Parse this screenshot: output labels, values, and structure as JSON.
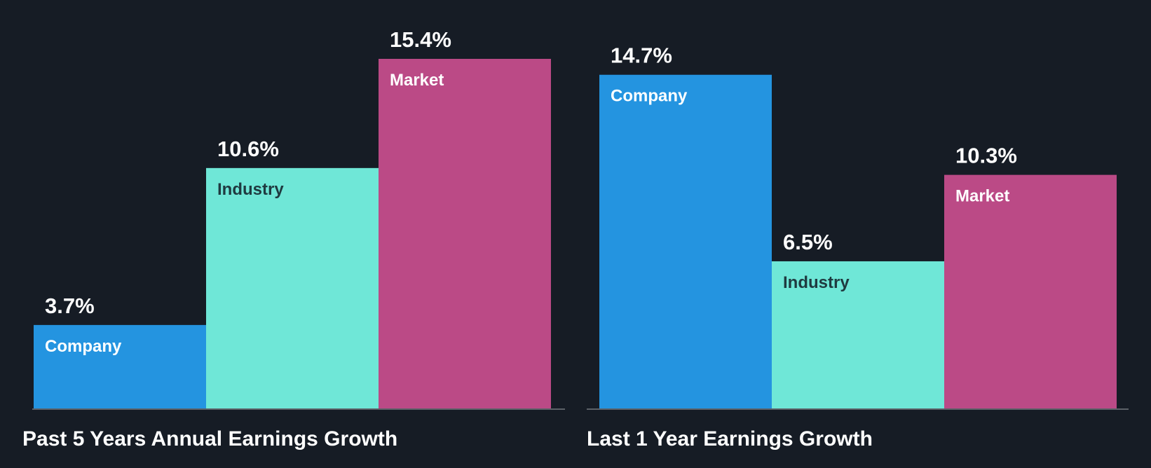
{
  "background_color": "#161c25",
  "axis_color": "#5c6168",
  "chart_data": [
    {
      "type": "bar",
      "title": "Past 5 Years Annual Earnings Growth",
      "categories": [
        "Company",
        "Industry",
        "Market"
      ],
      "values": [
        3.7,
        10.6,
        15.4
      ],
      "value_labels": [
        "3.7%",
        "10.6%",
        "15.4%"
      ],
      "colors": [
        "#2494e0",
        "#6fe7d7",
        "#bb4a86"
      ],
      "name_colors": [
        "#ffffff",
        "#1f3a40",
        "#ffffff"
      ],
      "xlabel": "",
      "ylabel": "",
      "ylim": [
        0,
        15.4
      ]
    },
    {
      "type": "bar",
      "title": "Last 1 Year Earnings Growth",
      "categories": [
        "Company",
        "Industry",
        "Market"
      ],
      "values": [
        14.7,
        6.5,
        10.3
      ],
      "value_labels": [
        "14.7%",
        "6.5%",
        "10.3%"
      ],
      "colors": [
        "#2494e0",
        "#6fe7d7",
        "#bb4a86"
      ],
      "name_colors": [
        "#ffffff",
        "#1f3a40",
        "#ffffff"
      ],
      "xlabel": "",
      "ylabel": "",
      "ylim": [
        0,
        15.4
      ]
    }
  ]
}
